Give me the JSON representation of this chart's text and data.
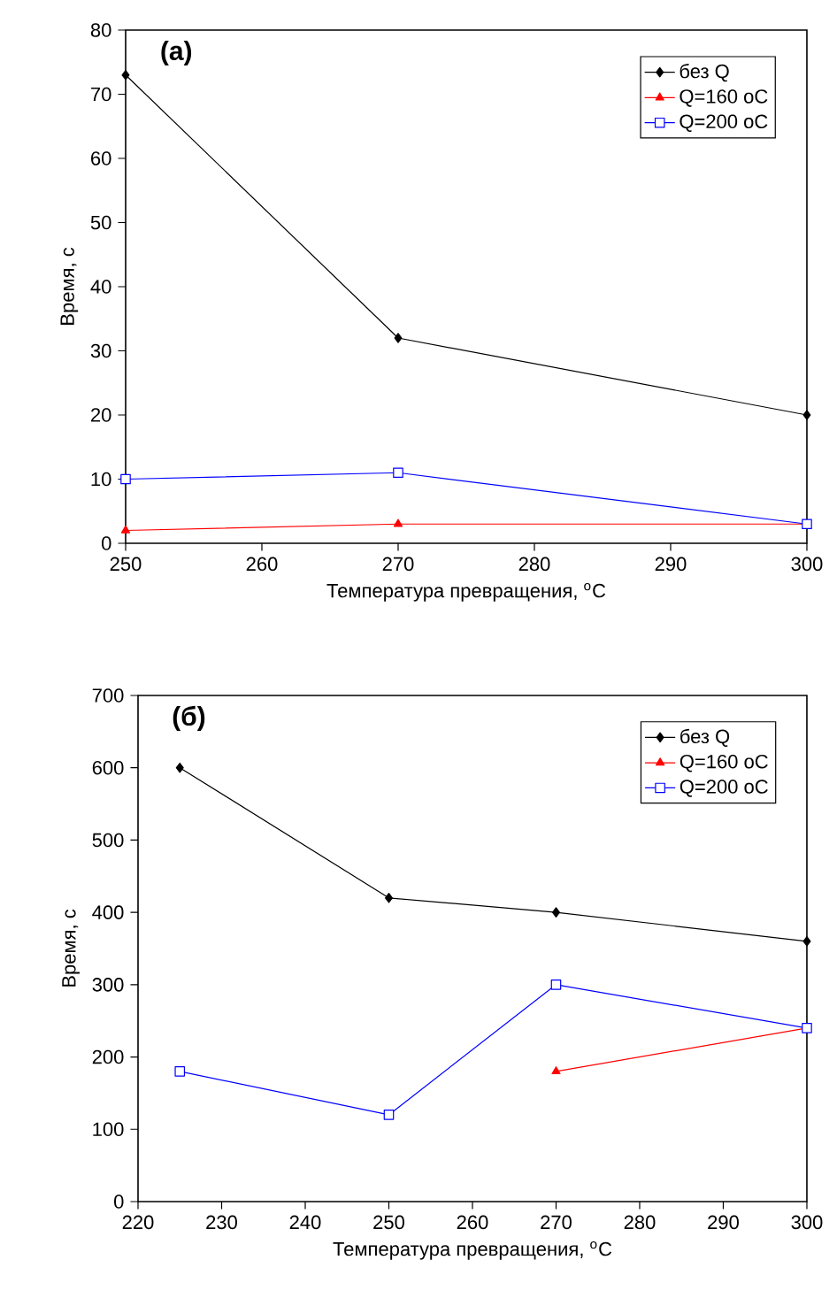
{
  "chart_data": [
    {
      "type": "line",
      "annotations": [
        "(a)"
      ],
      "xlabel": "Температура превращения, $^{o}$C",
      "ylabel": "Время, с",
      "xlim": [
        250,
        300
      ],
      "ylim": [
        0,
        80
      ],
      "xticks": [
        250,
        260,
        270,
        280,
        290,
        300
      ],
      "yticks": [
        0,
        10,
        20,
        30,
        40,
        50,
        60,
        70,
        80
      ],
      "legend": "top right",
      "grid": false,
      "series": [
        {
          "name": "без Q",
          "color": "#000000",
          "marker": "diamond",
          "x": [
            250,
            270,
            300
          ],
          "values": [
            73,
            32,
            20
          ]
        },
        {
          "name": "Q=160 oC",
          "color": "#ff0000",
          "marker": "triangle",
          "x": [
            250,
            270,
            300
          ],
          "values": [
            2,
            3,
            3
          ]
        },
        {
          "name": "Q=200 oC",
          "color": "#0000ff",
          "marker": "square",
          "x": [
            250,
            270,
            300
          ],
          "values": [
            10,
            11,
            3
          ]
        }
      ]
    },
    {
      "type": "line",
      "annotations": [
        "(б)"
      ],
      "xlabel": "Температура превращения, $^{o}$C",
      "ylabel": "Время, с",
      "xlim": [
        220,
        300
      ],
      "ylim": [
        0,
        700
      ],
      "xticks": [
        220,
        230,
        240,
        250,
        260,
        270,
        280,
        290,
        300
      ],
      "yticks": [
        0,
        100,
        200,
        300,
        400,
        500,
        600,
        700
      ],
      "legend": "top right",
      "grid": false,
      "series": [
        {
          "name": "без Q",
          "color": "#000000",
          "marker": "diamond",
          "x": [
            225,
            250,
            270,
            300
          ],
          "values": [
            600,
            420,
            400,
            360
          ]
        },
        {
          "name": "Q=160 oC",
          "color": "#ff0000",
          "marker": "triangle",
          "x": [
            270,
            300
          ],
          "values": [
            180,
            240
          ]
        },
        {
          "name": "Q=200 oC",
          "color": "#0000ff",
          "marker": "square",
          "x": [
            225,
            250,
            270,
            300
          ],
          "values": [
            180,
            120,
            300,
            240
          ]
        }
      ]
    }
  ]
}
